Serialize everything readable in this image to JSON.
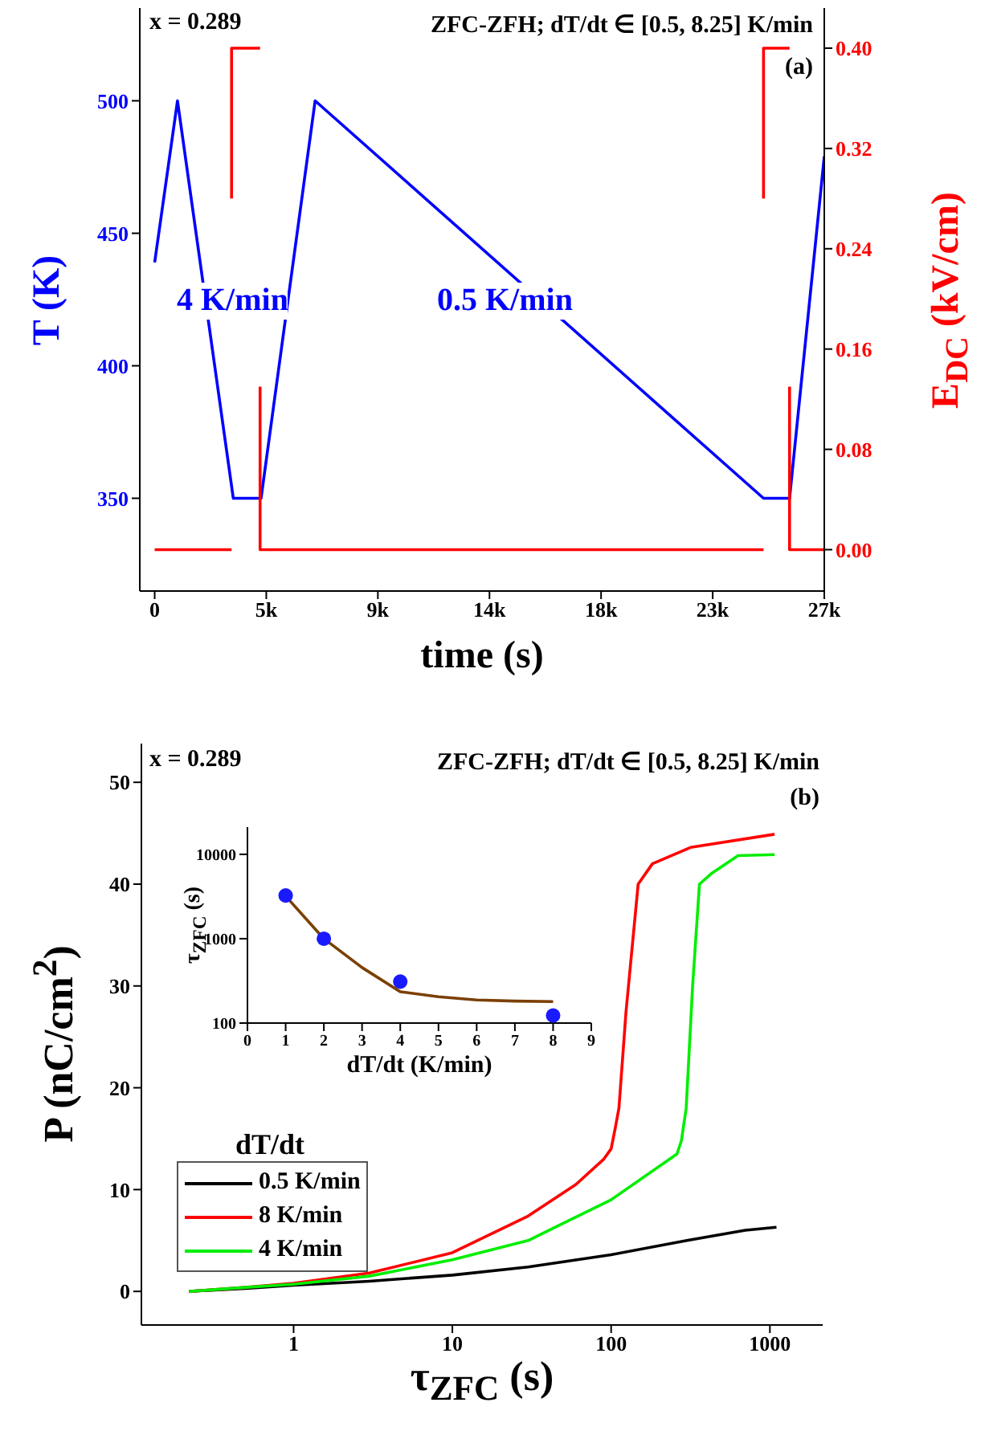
{
  "chart_data": [
    {
      "type": "line",
      "xlabel": "time (s)",
      "ylabel": "T (K)",
      "y2label": "E$_{DC}$ (kV/cm)",
      "marker": "none",
      "annotations": [
        "x = 0.289",
        "ZFC-ZFH; dT/dt ∈ [0.5, 8.25] K/min",
        "(a)",
        "4 K/min",
        "0.5 K/min"
      ],
      "xlim": [
        -600,
        27000
      ],
      "xticks": [
        0,
        {
          "value": 4500,
          "label": "5k"
        },
        {
          "value": 9000,
          "label": "9k"
        },
        {
          "value": 13500,
          "label": "14k"
        },
        {
          "value": 18000,
          "label": "18k"
        },
        {
          "value": 22500,
          "label": "23k"
        },
        {
          "value": 27000,
          "label": "27k"
        }
      ],
      "ylim": [
        315,
        535
      ],
      "yticks": [
        350,
        400,
        450,
        500
      ],
      "y2lim": [
        -0.033,
        0.432
      ],
      "y2ticks": [
        {
          "value": 0,
          "label": "0.00"
        },
        0.08,
        0.16,
        0.24,
        0.32,
        {
          "value": 0.4,
          "label": "0.40"
        }
      ],
      "series": [
        {
          "color": "#0000ff",
          "x": [
            0,
            920,
            3170,
            4290,
            6470,
            24550,
            25600,
            27000
          ],
          "values": [
            439,
            500,
            350,
            350,
            500,
            350,
            350,
            479
          ]
        },
        {
          "color": "#ff0000",
          "axis": "y2",
          "x": [
            0,
            3100
          ],
          "values": [
            0,
            0
          ]
        },
        {
          "color": "#ff0000",
          "axis": "y2",
          "x": [
            3100,
            3100,
            4250
          ],
          "values": [
            0.28,
            0.4,
            0.4
          ]
        },
        {
          "color": "#ff0000",
          "axis": "y2",
          "x": [
            4250,
            4250,
            24550
          ],
          "values": [
            0.13,
            0,
            0
          ]
        },
        {
          "color": "#ff0000",
          "axis": "y2",
          "x": [
            24550,
            24550,
            25600
          ],
          "values": [
            0.28,
            0.4,
            0.4
          ]
        },
        {
          "color": "#ff0000",
          "axis": "y2",
          "x": [
            25600,
            25600,
            27000
          ],
          "values": [
            0.13,
            0,
            0
          ]
        }
      ]
    },
    {
      "type": "line",
      "xlabel": "τ$_{ZFC}$ (s)",
      "ylabel": "P (nC/cm$^{2}$)",
      "marker": "none",
      "log": "x",
      "legend": "bottom left",
      "legend_title": "dT/dt",
      "annotations": [
        "x = 0.289",
        "ZFC-ZFH; dT/dt ∈ [0.5, 8.25] K/min",
        "(b)"
      ],
      "xlim": [
        0.11,
        2150
      ],
      "xticks": [
        1,
        10,
        100,
        1000
      ],
      "ylim": [
        -3.3,
        53.8
      ],
      "yticks": [
        0,
        10,
        20,
        30,
        40,
        50
      ],
      "series": [
        {
          "name": "0.5 K/min",
          "color": "#000000",
          "x": [
            0.22,
            0.5,
            1,
            3,
            10,
            30,
            100,
            300,
            700,
            1100
          ],
          "values": [
            0,
            0.3,
            0.6,
            1.0,
            1.6,
            2.4,
            3.6,
            5.0,
            6.0,
            6.3
          ]
        },
        {
          "name": "8 K/min",
          "color": "#ff0000",
          "x": [
            0.22,
            0.5,
            1,
            3,
            10,
            30,
            60,
            90,
            100,
            106,
            112,
            124,
            148,
            182,
            316,
            1070
          ],
          "values": [
            0,
            0.4,
            0.8,
            1.8,
            3.8,
            7.4,
            10.5,
            13.0,
            14.0,
            16.0,
            18.0,
            27.4,
            40.0,
            42.0,
            43.6,
            44.9
          ]
        },
        {
          "name": "4 K/min",
          "color": "#00ee00",
          "x": [
            0.22,
            0.5,
            1,
            3,
            10,
            30,
            100,
            260,
            277,
            297,
            326,
            360,
            425,
            630,
            1070
          ],
          "values": [
            0,
            0.4,
            0.7,
            1.5,
            3.1,
            5.0,
            9.0,
            13.5,
            14.8,
            18.0,
            30.0,
            40.0,
            41.0,
            42.8,
            42.9
          ]
        }
      ]
    },
    {
      "type": "scatter",
      "xlabel": "dT/dt (K/min)",
      "ylabel": "τ$_{ZFC}$ (s)",
      "log": "y",
      "marker": "circle",
      "xlim": [
        0,
        9
      ],
      "xticks": [
        0,
        1,
        2,
        3,
        4,
        5,
        6,
        7,
        8,
        9
      ],
      "ylim": [
        100,
        21000
      ],
      "yticks": [
        100,
        1000,
        10000
      ],
      "series": [
        {
          "color": "#1a1aff",
          "x": [
            1,
            2,
            4,
            8
          ],
          "values": [
            3250,
            1000,
            310,
            123
          ]
        },
        {
          "type": "line",
          "marker": "none",
          "color": "#7b3f00",
          "x": [
            1,
            2,
            3,
            4,
            5,
            6,
            7,
            8
          ],
          "values": [
            3200,
            1000,
            455,
            235,
            205,
            188,
            182,
            180
          ]
        }
      ]
    }
  ]
}
